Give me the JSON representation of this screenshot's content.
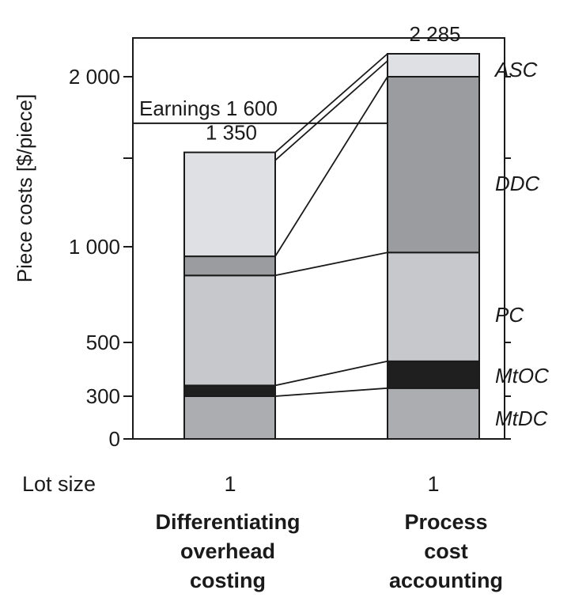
{
  "chart_data": {
    "type": "bar",
    "stacked": true,
    "ylabel": "Piece costs [$/piece]",
    "ylim": [
      0,
      2285
    ],
    "ticks": [
      {
        "value": 0,
        "label": "0"
      },
      {
        "value": 300,
        "label": "300"
      },
      {
        "value": 500,
        "label": "500"
      },
      {
        "value": 1000,
        "label": "1 000"
      },
      {
        "value": 2000,
        "label": "2 000"
      }
    ],
    "segment_names": [
      "MtDC",
      "MtOC",
      "PC",
      "DDC",
      "ASC"
    ],
    "segment_colors": [
      "#acadb1",
      "#1f1f1f",
      "#c7c8cb",
      "#9b9c9f",
      "#dfe0e3"
    ],
    "bars": [
      {
        "lot_size": "1",
        "name_lines": [
          "Differentiating",
          "overhead",
          "costing"
        ],
        "total": 1350,
        "total_label": "1 350",
        "segments": [
          {
            "name": "MtDC",
            "from": 0,
            "to": 300
          },
          {
            "name": "MtOC",
            "from": 300,
            "to": 340
          },
          {
            "name": "PC",
            "from": 340,
            "to": 850
          },
          {
            "name": "DDC",
            "from": 850,
            "to": 950
          },
          {
            "name": "ASC",
            "from": 950,
            "to": 1350
          }
        ]
      },
      {
        "lot_size": "1",
        "name_lines": [
          "Process",
          "cost",
          "accounting"
        ],
        "total": 2285,
        "total_label": "2 285",
        "segments": [
          {
            "name": "MtDC",
            "from": 0,
            "to": 330
          },
          {
            "name": "MtOC",
            "from": 330,
            "to": 430
          },
          {
            "name": "PC",
            "from": 430,
            "to": 970
          },
          {
            "name": "DDC",
            "from": 970,
            "to": 2000
          },
          {
            "name": "ASC",
            "from": 2000,
            "to": 2285
          }
        ]
      }
    ],
    "reference_line": {
      "label": "Earnings 1 600",
      "value": 1600
    },
    "lot_size_label": "Lot size"
  }
}
